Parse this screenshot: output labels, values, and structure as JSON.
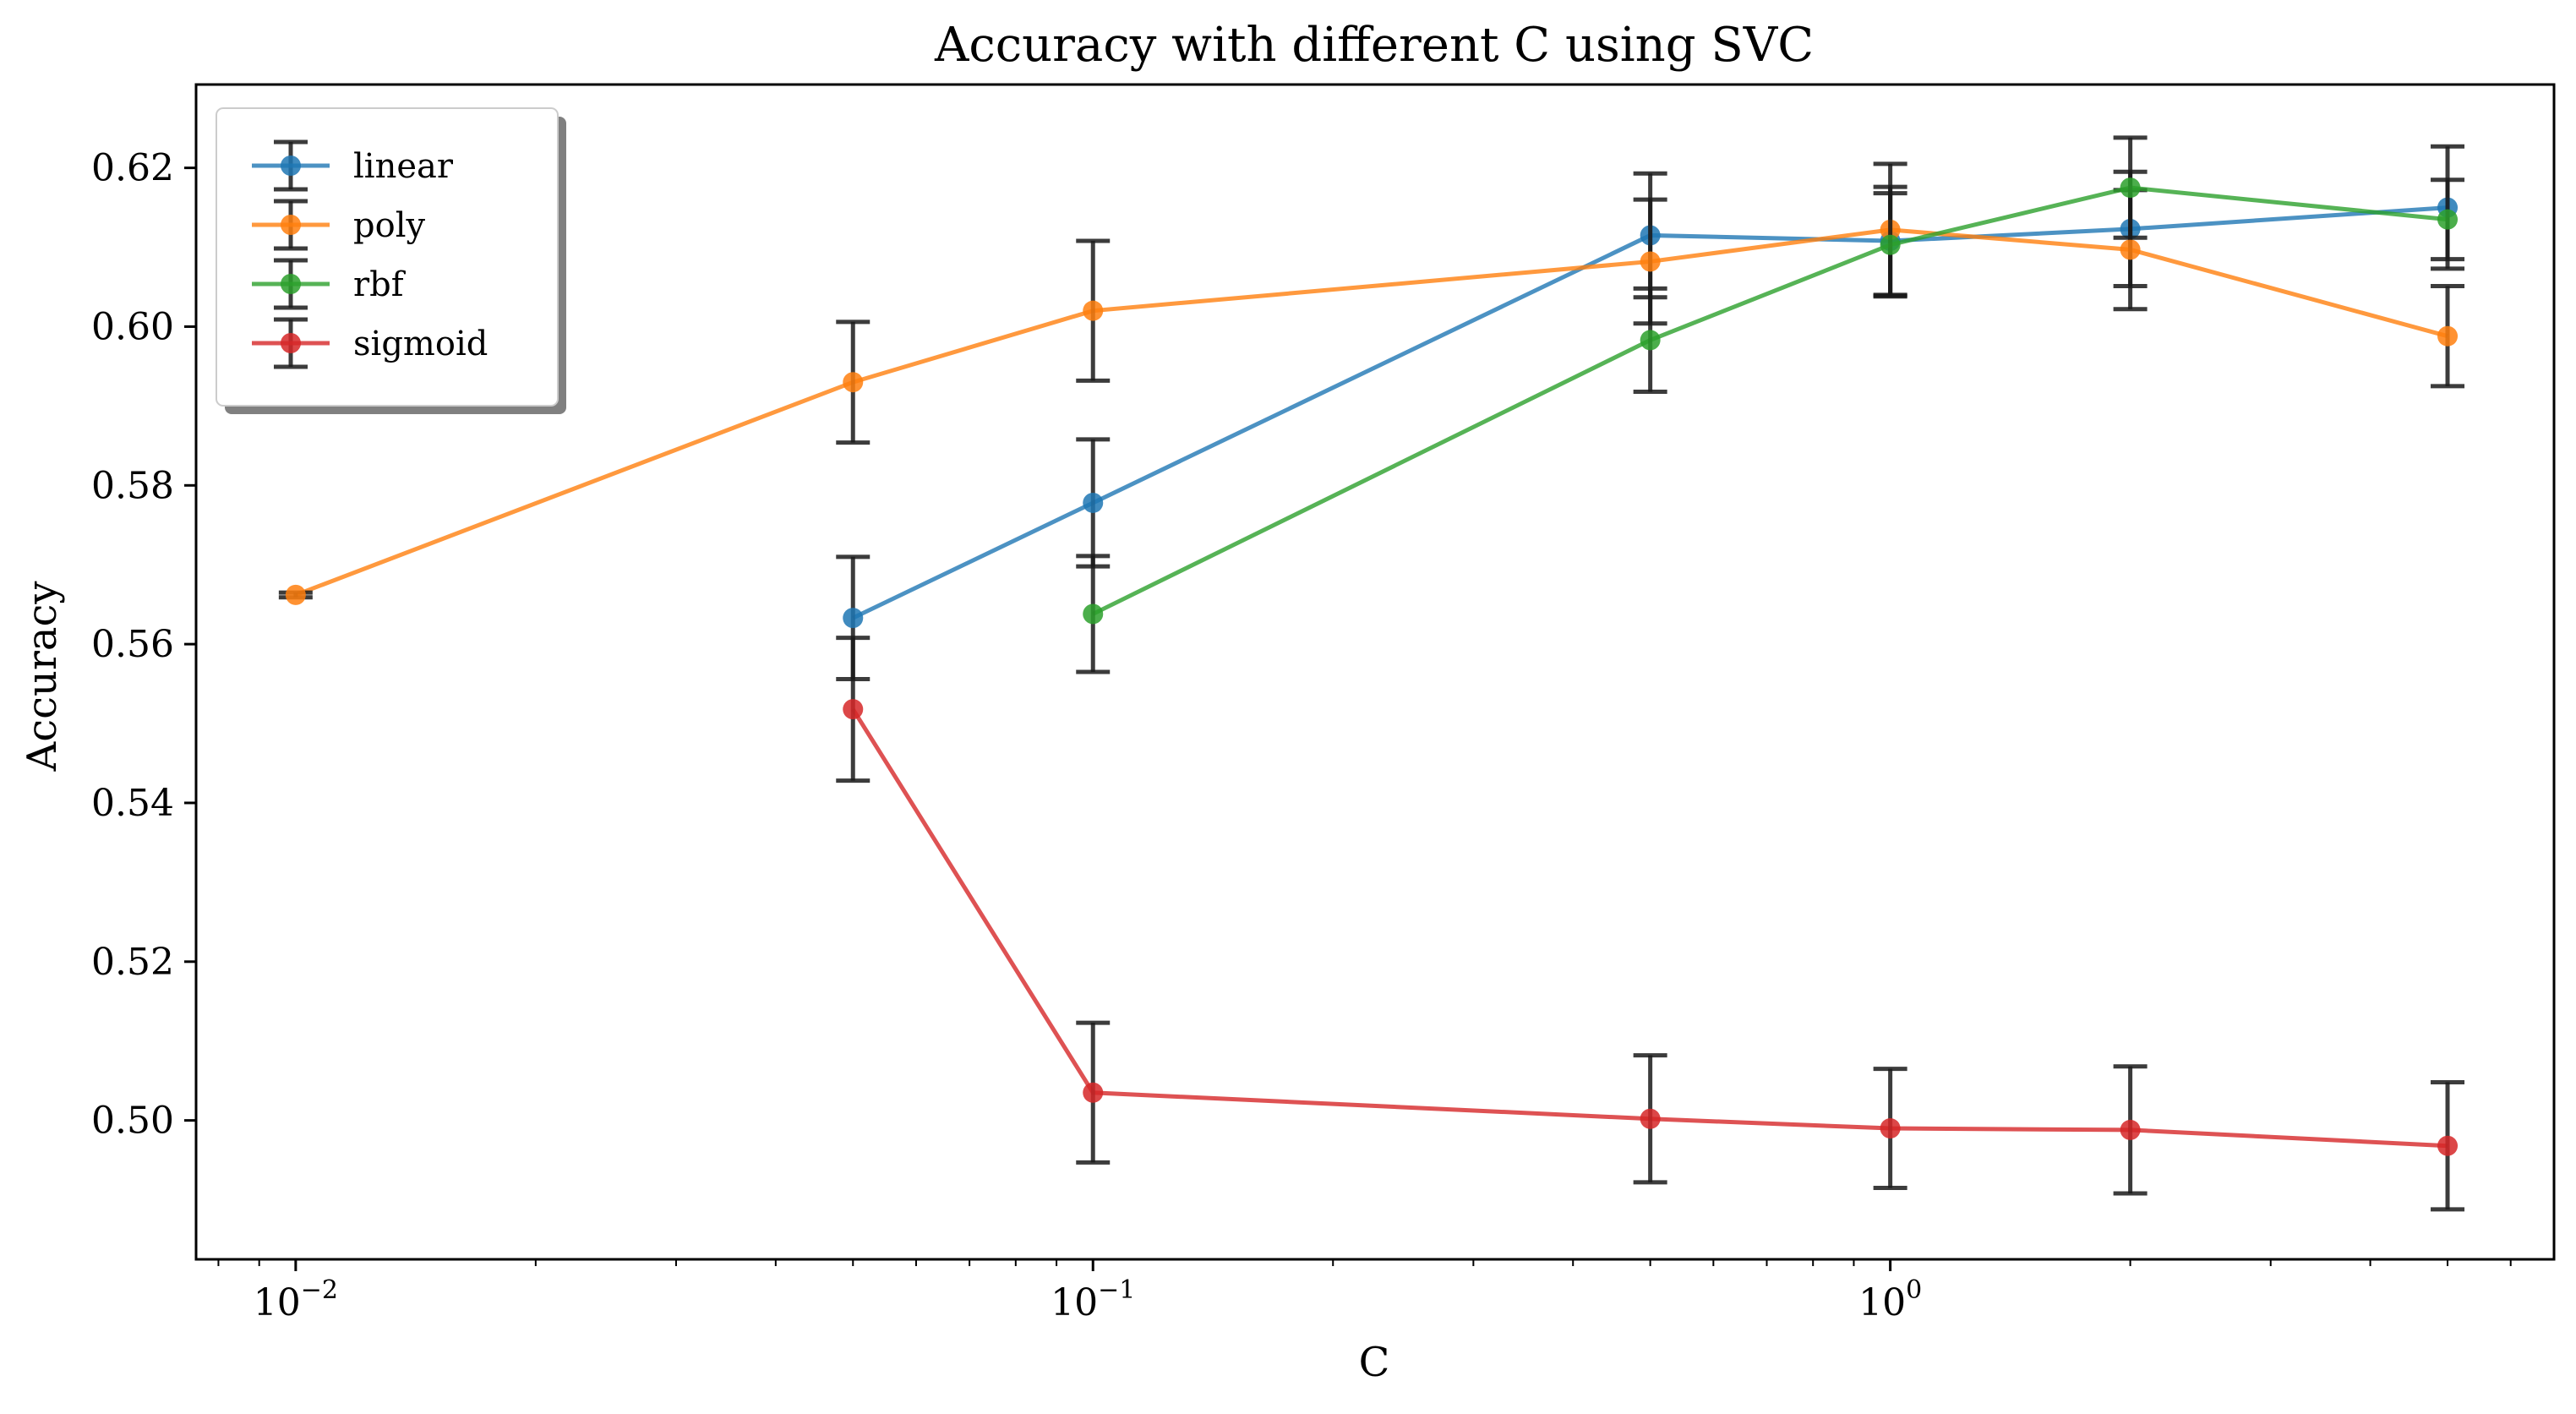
{
  "chart_data": {
    "type": "line",
    "title": "Accuracy with different C using SVC",
    "xlabel": "C",
    "ylabel": "Accuracy",
    "xscale": "log",
    "xlim": [
      0.0075,
      6.8
    ],
    "ylim": [
      0.4825,
      0.6305
    ],
    "x_ticks": [
      {
        "value": 0.01,
        "base": "10",
        "exp": "−2"
      },
      {
        "value": 0.1,
        "base": "10",
        "exp": "−1"
      },
      {
        "value": 1,
        "base": "10",
        "exp": "0"
      }
    ],
    "y_ticks": [
      {
        "value": 0.5,
        "label": "0.50"
      },
      {
        "value": 0.52,
        "label": "0.52"
      },
      {
        "value": 0.54,
        "label": "0.54"
      },
      {
        "value": 0.56,
        "label": "0.56"
      },
      {
        "value": 0.58,
        "label": "0.58"
      },
      {
        "value": 0.6,
        "label": "0.60"
      },
      {
        "value": 0.62,
        "label": "0.62"
      }
    ],
    "grid": false,
    "legend_position": "upper-left",
    "error_bar_color": "#1a1a1a",
    "series": [
      {
        "name": "linear",
        "color": "#1f77b4",
        "points": [
          {
            "x": 0.05,
            "y": 0.5633,
            "err": 0.0077
          },
          {
            "x": 0.1,
            "y": 0.5778,
            "err": 0.008
          },
          {
            "x": 0.5,
            "y": 0.6115,
            "err": 0.0078
          },
          {
            "x": 1,
            "y": 0.6108,
            "err": 0.0068
          },
          {
            "x": 2,
            "y": 0.6123,
            "err": 0.0072
          },
          {
            "x": 5,
            "y": 0.615,
            "err": 0.0077
          }
        ]
      },
      {
        "name": "poly",
        "color": "#ff7f0e",
        "points": [
          {
            "x": 0.01,
            "y": 0.5662,
            "err": 0.0003
          },
          {
            "x": 0.05,
            "y": 0.593,
            "err": 0.0076
          },
          {
            "x": 0.1,
            "y": 0.602,
            "err": 0.0088
          },
          {
            "x": 0.5,
            "y": 0.6082,
            "err": 0.0078
          },
          {
            "x": 1,
            "y": 0.6122,
            "err": 0.0083
          },
          {
            "x": 2,
            "y": 0.6097,
            "err": 0.0075
          },
          {
            "x": 5,
            "y": 0.5988,
            "err": 0.0063
          }
        ]
      },
      {
        "name": "rbf",
        "color": "#2ca02c",
        "points": [
          {
            "x": 0.1,
            "y": 0.5638,
            "err": 0.0073
          },
          {
            "x": 0.5,
            "y": 0.5983,
            "err": 0.0065
          },
          {
            "x": 1,
            "y": 0.6103,
            "err": 0.0065
          },
          {
            "x": 2,
            "y": 0.6175,
            "err": 0.0063
          },
          {
            "x": 5,
            "y": 0.6135,
            "err": 0.005
          }
        ]
      },
      {
        "name": "sigmoid",
        "color": "#d62728",
        "points": [
          {
            "x": 0.05,
            "y": 0.5518,
            "err": 0.009
          },
          {
            "x": 0.1,
            "y": 0.5035,
            "err": 0.0088
          },
          {
            "x": 0.5,
            "y": 0.5002,
            "err": 0.008
          },
          {
            "x": 1,
            "y": 0.499,
            "err": 0.0075
          },
          {
            "x": 2,
            "y": 0.4988,
            "err": 0.008
          },
          {
            "x": 5,
            "y": 0.4968,
            "err": 0.008
          }
        ]
      }
    ]
  }
}
